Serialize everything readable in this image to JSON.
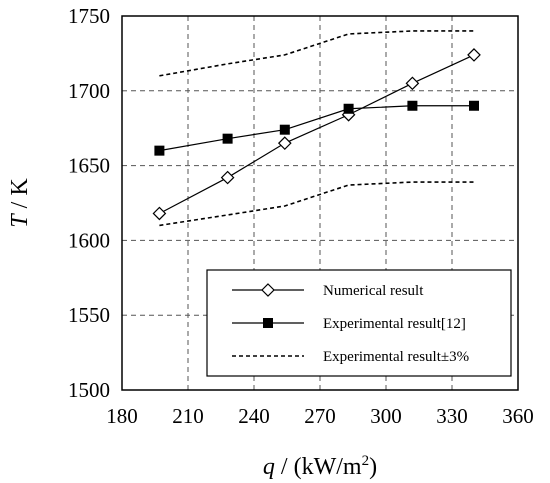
{
  "chart_data": {
    "type": "line",
    "xlabel": {
      "var": "q",
      "unit_prefix": " / (kW/m",
      "unit_sup": "2",
      "unit_suffix": ")"
    },
    "ylabel": {
      "var": "T",
      "unit": " / K"
    },
    "xlim": [
      180,
      360
    ],
    "ylim": [
      1500,
      1750
    ],
    "xticks": [
      180,
      210,
      240,
      270,
      300,
      330,
      360
    ],
    "yticks": [
      1500,
      1550,
      1600,
      1650,
      1700,
      1750
    ],
    "grid": true,
    "legend_position": "bottom-right",
    "series": [
      {
        "name": "Numerical result",
        "style": "solid",
        "marker": "open-diamond",
        "color": "#000000",
        "x": [
          197,
          228,
          254,
          283,
          312,
          340
        ],
        "y": [
          1618,
          1642,
          1665,
          1684,
          1705,
          1724
        ]
      },
      {
        "name": "Experimental result[12]",
        "style": "solid",
        "marker": "filled-square",
        "color": "#000000",
        "x": [
          197,
          228,
          254,
          283,
          312,
          340
        ],
        "y": [
          1660,
          1668,
          1674,
          1688,
          1690,
          1690
        ]
      },
      {
        "name": "Experimental result±3%",
        "style": "dashed",
        "marker": "none",
        "color": "#000000",
        "x": [
          197,
          228,
          254,
          283,
          312,
          340
        ],
        "y": [
          1710,
          1718,
          1724,
          1738,
          1740,
          1740
        ]
      },
      {
        "name": "",
        "style": "dashed",
        "marker": "none",
        "color": "#000000",
        "x": [
          197,
          228,
          254,
          283,
          312,
          340
        ],
        "y": [
          1610,
          1617,
          1623,
          1637,
          1639,
          1639
        ]
      }
    ]
  }
}
